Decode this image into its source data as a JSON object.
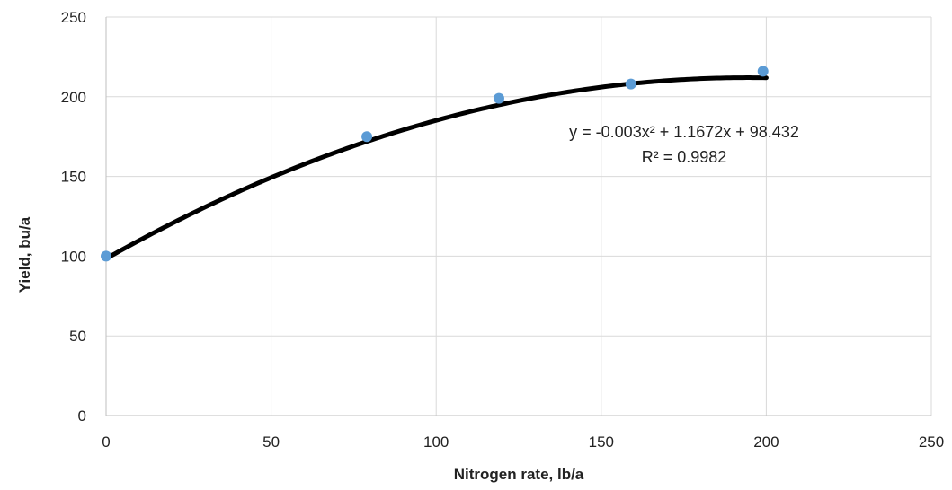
{
  "chart_data": {
    "type": "scatter",
    "title": "",
    "xlabel": "Nitrogen rate, lb/a",
    "ylabel": "Yield, bu/a",
    "xlim": [
      0,
      250
    ],
    "ylim": [
      0,
      250
    ],
    "x_ticks": [
      "0",
      "50",
      "100",
      "150",
      "200",
      "250"
    ],
    "y_ticks": [
      "0",
      "50",
      "100",
      "150",
      "200",
      "250"
    ],
    "grid": true,
    "legend": "none",
    "series": [
      {
        "kind": "points",
        "color": "#5b9bd5",
        "x": [
          0,
          79,
          119,
          159,
          199
        ],
        "y": [
          100,
          175,
          199,
          208,
          216
        ]
      }
    ],
    "trendline": {
      "kind": "polynomial",
      "order": 2,
      "coefficients": [
        -0.003,
        1.1672,
        98.432
      ],
      "x_range": [
        0,
        200
      ],
      "color": "#000000",
      "equation_text": "y = -0.003x² + 1.1672x + 98.432",
      "r2_text": "R² = 0.9982"
    }
  }
}
